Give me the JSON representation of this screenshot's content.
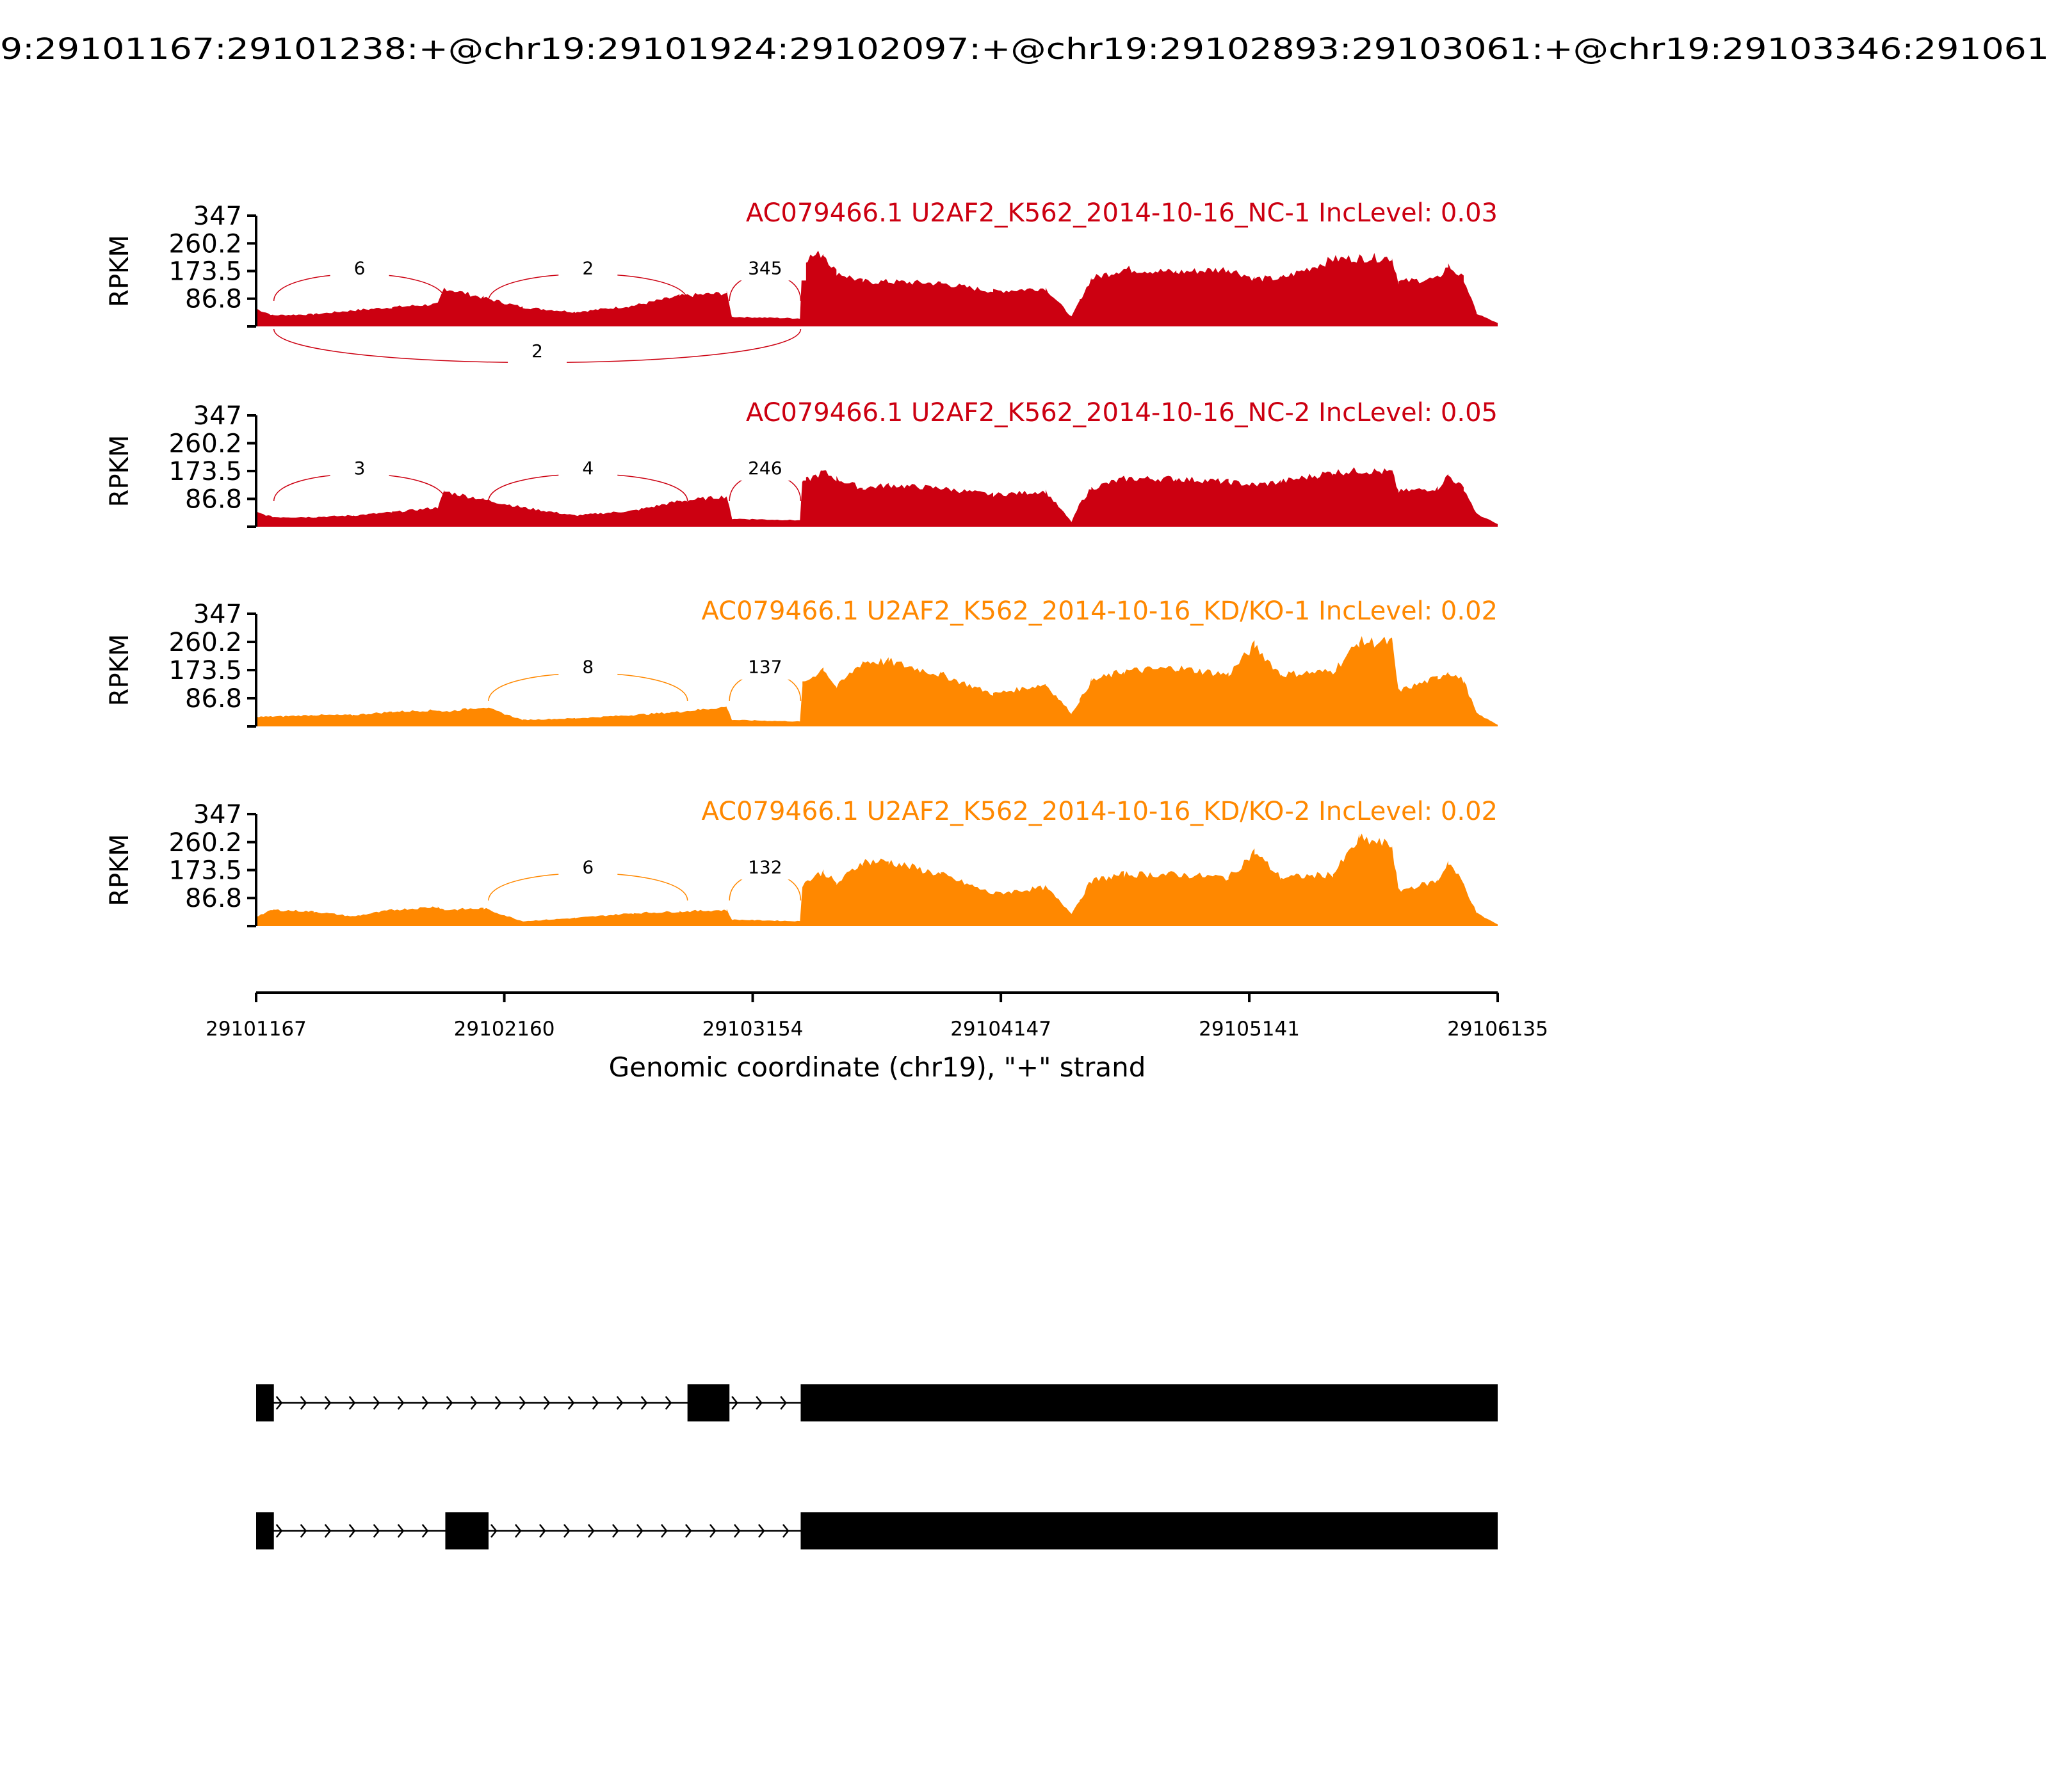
{
  "chart_data": {
    "type": "area",
    "title": "9:29101167:29101238:+@chr19:29101924:29102097:+@chr19:29102893:29103061:+@chr19:29103346:291061",
    "xlabel": "Genomic coordinate (chr19), \"+\" strand",
    "ylabel": "RPKM",
    "xlim": [
      29101167,
      29106135
    ],
    "ylim": [
      0,
      347
    ],
    "x_ticks": [
      "29101167",
      "29102160",
      "29103154",
      "29104147",
      "29105141",
      "29106135"
    ],
    "x_tick_values": [
      29101167,
      29102160,
      29103154,
      29104147,
      29105141,
      29106135
    ],
    "y_ticks": [
      "347",
      "260.2",
      "173.5",
      "86.8"
    ],
    "y_tick_values": [
      347,
      260.2,
      173.5,
      86.8
    ],
    "coverage_x": [
      29101167,
      29101235,
      29101397,
      29101554,
      29101711,
      29101894,
      29101920,
      29102077,
      29102234,
      29102443,
      29102678,
      29102861,
      29103050,
      29103071,
      29103343,
      29103353,
      29103437,
      29103489,
      29103594,
      29103698,
      29103907,
      29104116,
      29104326,
      29104430,
      29104462,
      29104509,
      29104639,
      29104849,
      29105058,
      29105162,
      29105267,
      29105476,
      29105581,
      29105712,
      29105738,
      29105895,
      29105937,
      29105999,
      29106051,
      29106135
    ],
    "series": [
      {
        "name": "AC079466.1 U2AF2_K562_2014-10-16_NC-1 IncLevel: 0.03",
        "color": "#cc0011",
        "values": [
          55,
          35,
          38,
          50,
          60,
          70,
          120,
          90,
          60,
          45,
          65,
          95,
          105,
          30,
          25,
          210,
          230,
          170,
          140,
          140,
          135,
          110,
          120,
          30,
          80,
          150,
          180,
          170,
          180,
          150,
          150,
          210,
          215,
          215,
          140,
          150,
          190,
          150,
          40,
          10
        ],
        "junctions": [
          {
            "start": 29101238,
            "end": 29101924,
            "count": "6",
            "side": "above"
          },
          {
            "start": 29102097,
            "end": 29102893,
            "count": "2",
            "side": "above"
          },
          {
            "start": 29103061,
            "end": 29103346,
            "count": "345",
            "side": "above"
          },
          {
            "start": 29101238,
            "end": 29103346,
            "count": "2",
            "side": "below"
          }
        ]
      },
      {
        "name": "AC079466.1 U2AF2_K562_2014-10-16_NC-2 IncLevel: 0.05",
        "color": "#cc0011",
        "values": [
          45,
          30,
          30,
          35,
          45,
          60,
          110,
          85,
          60,
          35,
          50,
          80,
          95,
          25,
          20,
          140,
          170,
          150,
          120,
          130,
          120,
          100,
          110,
          15,
          70,
          120,
          150,
          150,
          140,
          130,
          140,
          170,
          175,
          170,
          110,
          120,
          160,
          120,
          40,
          8
        ],
        "junctions": [
          {
            "start": 29101238,
            "end": 29101924,
            "count": "3",
            "side": "above"
          },
          {
            "start": 29102097,
            "end": 29102893,
            "count": "4",
            "side": "above"
          },
          {
            "start": 29103061,
            "end": 29103346,
            "count": "246",
            "side": "above"
          }
        ]
      },
      {
        "name": "AC079466.1 U2AF2_K562_2014-10-16_KD/KO-1 IncLevel: 0.02",
        "color": "#ff8800",
        "values": [
          30,
          30,
          35,
          35,
          45,
          50,
          45,
          60,
          20,
          25,
          35,
          45,
          60,
          20,
          15,
          130,
          180,
          120,
          200,
          200,
          160,
          100,
          130,
          40,
          80,
          140,
          170,
          180,
          160,
          250,
          160,
          170,
          260,
          260,
          110,
          150,
          170,
          140,
          40,
          5
        ],
        "junctions": [
          {
            "start": 29102097,
            "end": 29102893,
            "count": "8",
            "side": "above"
          },
          {
            "start": 29103061,
            "end": 29103346,
            "count": "137",
            "side": "above"
          }
        ]
      },
      {
        "name": "AC079466.1 U2AF2_K562_2014-10-16_KD/KO-2 IncLevel: 0.02",
        "color": "#ff8800",
        "values": [
          30,
          50,
          45,
          30,
          50,
          60,
          50,
          55,
          15,
          25,
          40,
          45,
          50,
          20,
          15,
          130,
          170,
          130,
          200,
          200,
          160,
          100,
          120,
          40,
          80,
          140,
          160,
          160,
          150,
          230,
          150,
          160,
          270,
          250,
          110,
          140,
          200,
          130,
          40,
          5
        ],
        "junctions": [
          {
            "start": 29102097,
            "end": 29102893,
            "count": "6",
            "side": "above"
          },
          {
            "start": 29103061,
            "end": 29103346,
            "count": "132",
            "side": "above"
          }
        ]
      }
    ],
    "isoforms": [
      {
        "exons": [
          [
            29101167,
            29101238
          ],
          [
            29102893,
            29103061
          ],
          [
            29103346,
            29106135
          ]
        ]
      },
      {
        "exons": [
          [
            29101167,
            29101238
          ],
          [
            29101924,
            29102097
          ],
          [
            29103346,
            29106135
          ]
        ]
      }
    ]
  }
}
